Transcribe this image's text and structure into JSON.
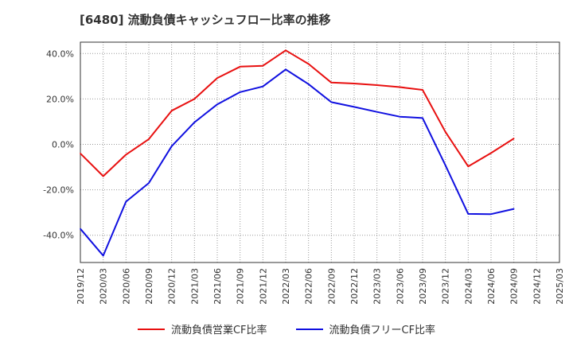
{
  "chart_data": {
    "type": "line",
    "title": "[6480]  流動負債キャッシュフロー比率の推移",
    "xlabel": "",
    "ylabel": "",
    "ylim": [
      -52,
      45
    ],
    "yticks": [
      40,
      20,
      0,
      -20,
      -40
    ],
    "ytick_labels": [
      "40.0%",
      "20.0%",
      "0.0%",
      "-20.0%",
      "-40.0%"
    ],
    "categories": [
      "2019/12",
      "2020/03",
      "2020/06",
      "2020/09",
      "2020/12",
      "2021/03",
      "2021/06",
      "2021/09",
      "2021/12",
      "2022/03",
      "2022/06",
      "2022/09",
      "2022/12",
      "2023/03",
      "2023/06",
      "2023/09",
      "2023/12",
      "2024/03",
      "2024/06",
      "2024/09",
      "2024/12",
      "2025/03"
    ],
    "grid": true,
    "legend_position": "bottom",
    "series": [
      {
        "name": "流動負債営業CF比率",
        "color": "#e81010",
        "values": [
          -4.0,
          -14.0,
          -4.5,
          2.3,
          14.8,
          20.0,
          29.2,
          34.2,
          34.6,
          41.4,
          35.4,
          27.2,
          26.8,
          26.1,
          25.2,
          24.0,
          5.5,
          -9.7,
          -3.8,
          2.6,
          null,
          null
        ]
      },
      {
        "name": "流動負債フリーCF比率",
        "color": "#1010e0",
        "values": [
          -37.2,
          -49.0,
          -25.2,
          -17.0,
          -0.8,
          9.7,
          17.6,
          23.0,
          25.5,
          33.0,
          26.5,
          18.6,
          16.5,
          14.3,
          12.2,
          11.6,
          -9.2,
          -30.6,
          -30.7,
          -28.4,
          null,
          null
        ]
      }
    ]
  }
}
